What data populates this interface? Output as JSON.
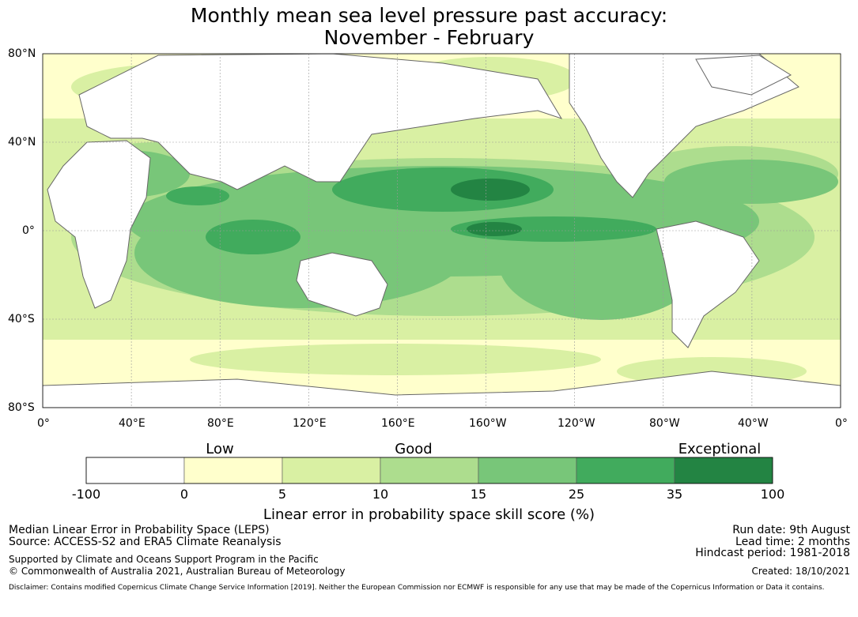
{
  "title_line1": "Monthly mean sea level pressure past accuracy:",
  "title_line2": "November - February",
  "map": {
    "lat_ticks": [
      "80°N",
      "40°N",
      "0°",
      "40°S",
      "80°S"
    ],
    "lon_ticks": [
      "0°",
      "40°E",
      "80°E",
      "120°E",
      "160°E",
      "160°W",
      "120°W",
      "80°W",
      "40°W",
      "0°"
    ],
    "land_color": "#ffffff",
    "coast_color": "#666666",
    "grid_color": "#9a9a9a"
  },
  "colorbar": {
    "categories": [
      "Low",
      "Good",
      "Exceptional"
    ],
    "tick_labels": [
      "-100",
      "0",
      "5",
      "10",
      "15",
      "25",
      "35",
      "100"
    ],
    "colors": [
      "#ffffff",
      "#ffffcc",
      "#d9f0a3",
      "#addd8e",
      "#78c679",
      "#41ab5d",
      "#238443"
    ],
    "label": "Linear error in probability space skill score (%)"
  },
  "footer": {
    "left1": "Median Linear Error in Probability Space (LEPS)",
    "left2": "Source: ACCESS-S2 and ERA5 Climate Reanalysis",
    "left3": "Supported by Climate and Oceans Support Program in the Pacific",
    "left4": "© Commonwealth of Australia 2021, Australian Bureau of Meteorology",
    "right1": "Run date: 9th August",
    "right2": "Lead time: 2 months",
    "right3": "Hindcast period: 1981-2018",
    "right4": "Created: 18/10/2021",
    "disclaimer": "Disclaimer: Contains modified Copernicus Climate Change Service Information [2019]. Neither the European Commission nor ECMWF is responsible for any use that may be made of the Copernicus Information or Data it contains."
  }
}
